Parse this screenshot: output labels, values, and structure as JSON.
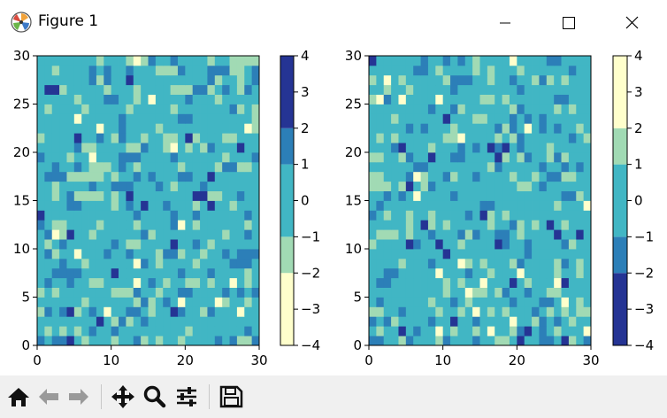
{
  "window": {
    "title": "Figure 1"
  },
  "toolbar": {
    "buttons": [
      {
        "name": "home-button",
        "icon": "home-icon"
      },
      {
        "name": "back-button",
        "icon": "back-arrow-icon"
      },
      {
        "name": "forward-button",
        "icon": "forward-arrow-icon"
      },
      {
        "name": "pan-button",
        "icon": "move-icon"
      },
      {
        "name": "zoom-button",
        "icon": "magnifier-icon"
      },
      {
        "name": "configure-subplots-button",
        "icon": "sliders-icon"
      },
      {
        "name": "save-button",
        "icon": "floppy-disk-icon"
      }
    ]
  },
  "chart_data": [
    {
      "type": "heatmap",
      "grid_size": [
        30,
        30
      ],
      "xlim": [
        0,
        30
      ],
      "ylim": [
        0,
        30
      ],
      "xticks": [
        "0",
        "10",
        "20",
        "30"
      ],
      "yticks": [
        "0",
        "5",
        "10",
        "15",
        "20",
        "25",
        "30"
      ],
      "colormap": "YlGnBu",
      "colorbar": {
        "ticks": [
          "4",
          "3",
          "2",
          "1",
          "0",
          "−1",
          "−2",
          "−3",
          "−4"
        ],
        "range": [
          -4,
          4
        ],
        "bins": [
          {
            "from": -4,
            "to": -2,
            "color": "#ffffcc"
          },
          {
            "from": -2,
            "to": -1,
            "color": "#a1dab4"
          },
          {
            "from": -1,
            "to": 1,
            "color": "#41b6c4"
          },
          {
            "from": 1,
            "to": 2,
            "color": "#2c7fb8"
          },
          {
            "from": 2,
            "to": 4,
            "color": "#253494"
          }
        ]
      },
      "seed": 7
    },
    {
      "type": "heatmap",
      "grid_size": [
        30,
        30
      ],
      "xlim": [
        0,
        30
      ],
      "ylim": [
        0,
        30
      ],
      "xticks": [
        "0",
        "10",
        "20",
        "30"
      ],
      "yticks": [
        "0",
        "5",
        "10",
        "15",
        "20",
        "25",
        "30"
      ],
      "colormap": "YlGnBu_r",
      "colorbar": {
        "ticks": [
          "4",
          "3",
          "2",
          "1",
          "0",
          "−1",
          "−2",
          "−3",
          "−4"
        ],
        "range": [
          -4,
          4
        ],
        "bins": [
          {
            "from": -4,
            "to": -2,
            "color": "#253494"
          },
          {
            "from": -2,
            "to": -1,
            "color": "#2c7fb8"
          },
          {
            "from": -1,
            "to": 1,
            "color": "#41b6c4"
          },
          {
            "from": 1,
            "to": 2,
            "color": "#a1dab4"
          },
          {
            "from": 2,
            "to": 4,
            "color": "#ffffcc"
          }
        ]
      },
      "seed": 23
    }
  ]
}
